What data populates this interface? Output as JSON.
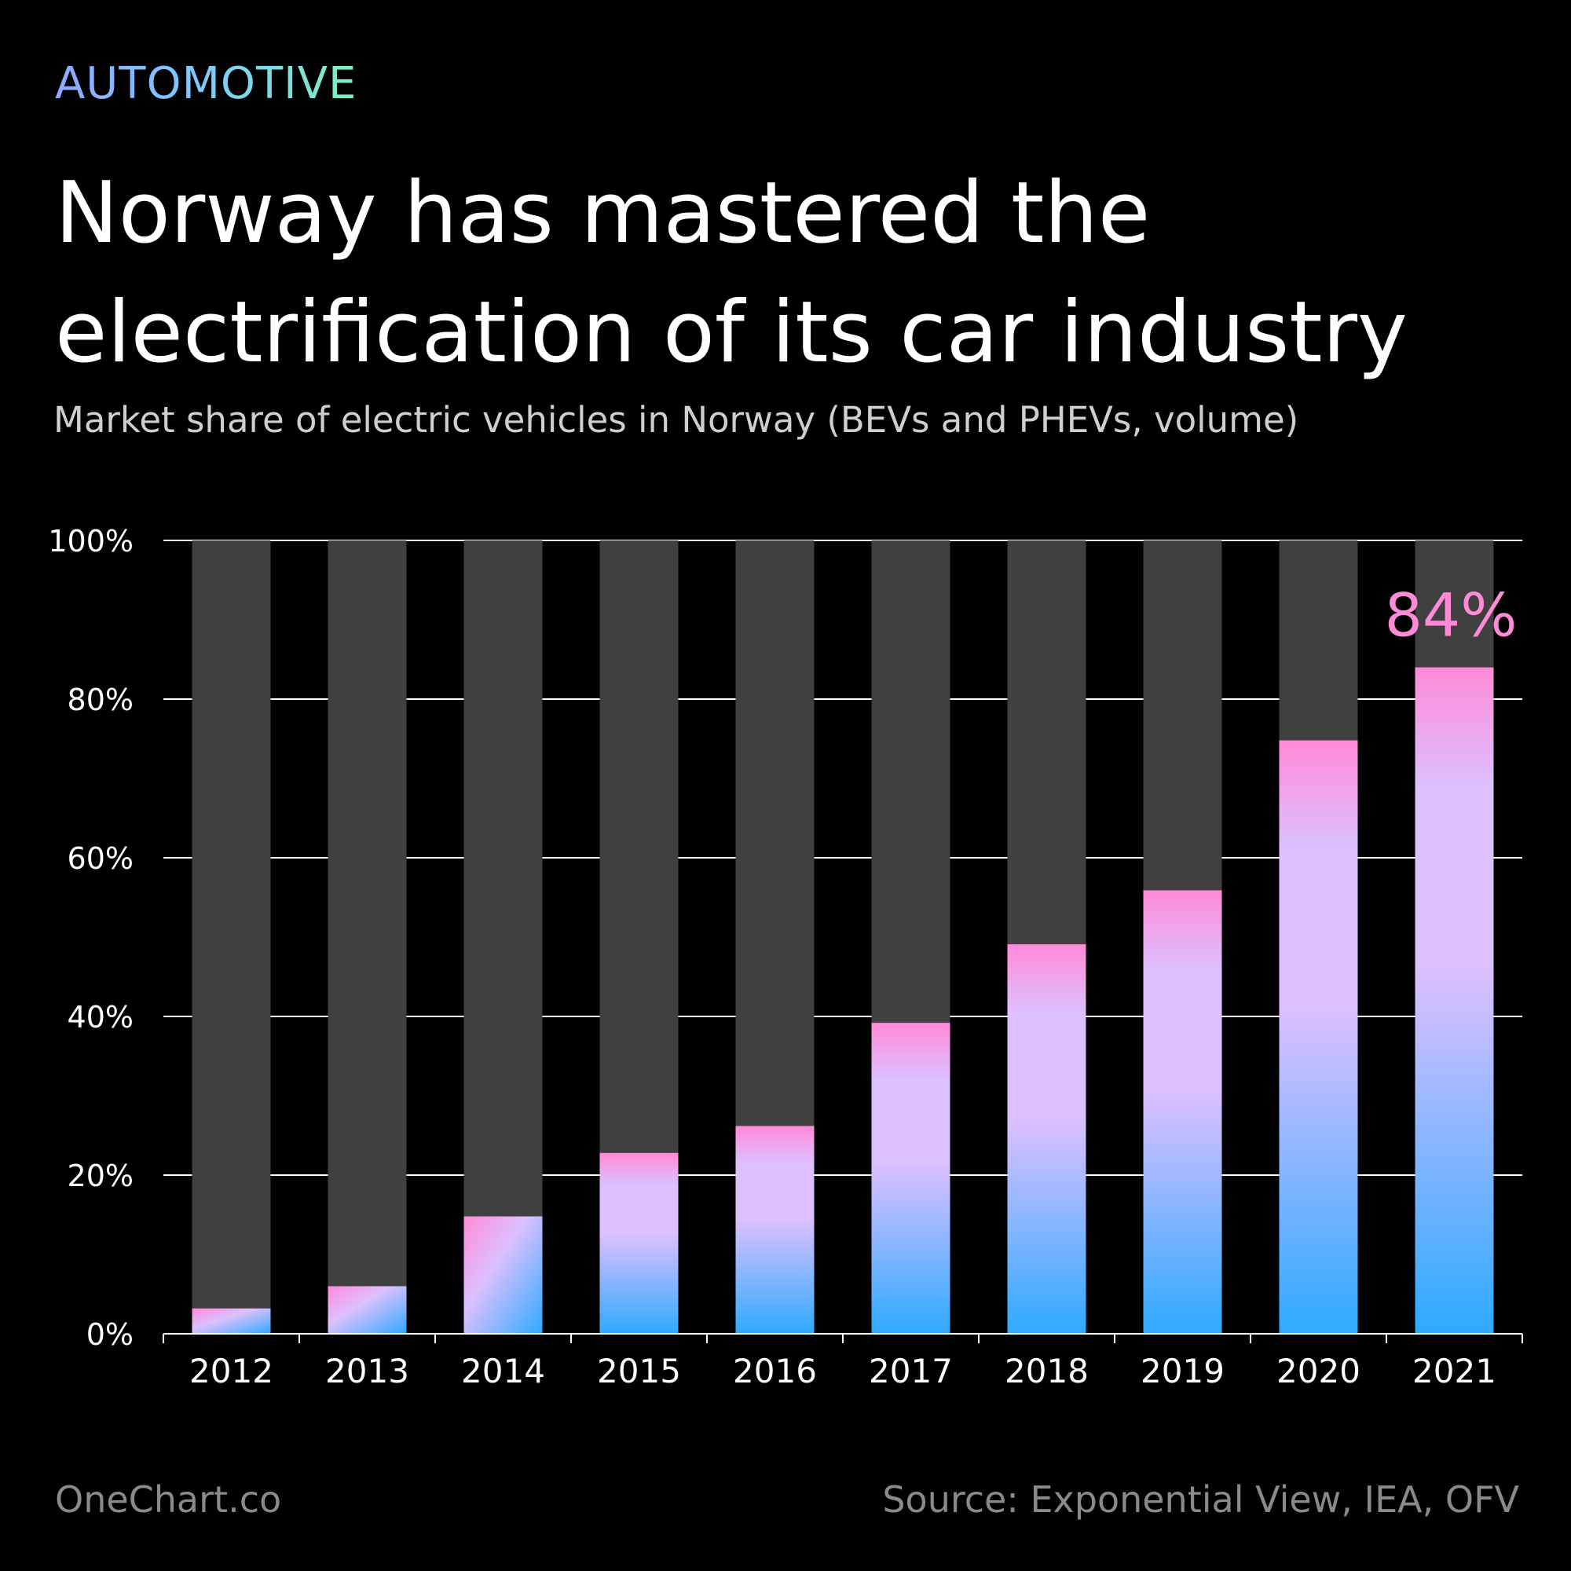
{
  "header": {
    "category": "AUTOMOTIVE",
    "title": "Norway has mastered the electrification of its car industry",
    "subtitle": "Market share of electric vehicles in Norway (BEVs and PHEVs, volume)"
  },
  "footer": {
    "brand": "OneChart.co",
    "source": "Source: Exponential View, IEA, OFV"
  },
  "colors": {
    "background": "#000000",
    "bar_remainder": "#404040",
    "ev_gradient_top": "#ff8ad8",
    "ev_gradient_mid": "#dcc0ff",
    "ev_gradient_bottom": "#2eaaff",
    "highlight_label": "#ff8ad8",
    "gridline": "#ffffff"
  },
  "chart_data": {
    "type": "bar",
    "categories": [
      "2012",
      "2013",
      "2014",
      "2015",
      "2016",
      "2017",
      "2018",
      "2019",
      "2020",
      "2021"
    ],
    "values": [
      3.2,
      6,
      14.8,
      22.8,
      26.2,
      39.2,
      49.1,
      55.9,
      74.8,
      84
    ],
    "ylim": [
      0,
      100
    ],
    "yticks": [
      0,
      20,
      40,
      60,
      80,
      100
    ],
    "ytick_labels": [
      "0%",
      "20%",
      "40%",
      "60%",
      "80%",
      "100%"
    ],
    "grid": true,
    "stack_total": 100,
    "annotations": [
      {
        "category": "2021",
        "text": "84%"
      }
    ]
  }
}
